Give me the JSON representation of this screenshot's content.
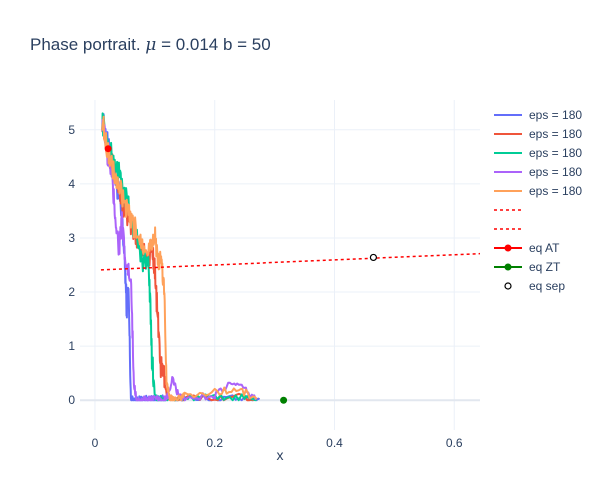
{
  "chart_data": {
    "type": "line",
    "title_prefix": "Phase portrait. ",
    "title_mu": "μ",
    "title_suffix": " = 0.014 b = 50",
    "xlabel": "x",
    "ylabel": "",
    "xlim": [
      -0.025,
      0.643
    ],
    "ylim": [
      -0.55,
      5.55
    ],
    "xticks": [
      0,
      0.2,
      0.4,
      0.6
    ],
    "xtick_labels": [
      "0",
      "0.2",
      "0.4",
      "0.6"
    ],
    "yticks": [
      0,
      1,
      2,
      3,
      4,
      5
    ],
    "ytick_labels": [
      "0",
      "1",
      "2",
      "3",
      "4",
      "5"
    ],
    "grid": true,
    "legend_position": "right",
    "series": [
      {
        "name": "eps = 180",
        "color": "#636efa",
        "mode": "lines",
        "x": [
          0.012,
          0.02,
          0.028,
          0.035,
          0.04,
          0.046,
          0.05,
          0.053,
          0.056,
          0.06,
          0.065,
          0.07,
          0.075,
          0.08,
          0.085,
          0.09,
          0.095,
          0.1,
          0.105,
          0.11,
          0.115,
          0.12,
          0.15,
          0.2,
          0.25,
          0.275
        ],
        "y": [
          5.2,
          4.8,
          4.35,
          4.05,
          3.8,
          3.2,
          2.5,
          1.7,
          2.05,
          0.0,
          0.02,
          0.0,
          0.01,
          0.0,
          0.02,
          0.0,
          0.01,
          0.02,
          0.0,
          0.01,
          0.03,
          0.01,
          0.02,
          0.03,
          0.02,
          0.02
        ]
      },
      {
        "name": "eps = 180",
        "color": "#ef553b",
        "mode": "lines",
        "x": [
          0.012,
          0.02,
          0.03,
          0.04,
          0.05,
          0.06,
          0.07,
          0.08,
          0.09,
          0.095,
          0.1,
          0.105,
          0.11,
          0.115,
          0.12,
          0.125,
          0.13,
          0.15,
          0.2,
          0.25,
          0.27
        ],
        "y": [
          5.2,
          4.7,
          4.3,
          3.9,
          3.5,
          3.2,
          3.0,
          2.8,
          2.6,
          2.9,
          2.4,
          1.5,
          0.6,
          0.5,
          0.1,
          0.05,
          0.0,
          0.03,
          0.05,
          0.06,
          0.02
        ]
      },
      {
        "name": "eps = 180",
        "color": "#00cc96",
        "mode": "lines",
        "x": [
          0.012,
          0.02,
          0.03,
          0.04,
          0.05,
          0.06,
          0.07,
          0.08,
          0.09,
          0.095,
          0.1,
          0.105,
          0.11,
          0.12,
          0.13,
          0.15,
          0.2,
          0.25,
          0.27
        ],
        "y": [
          5.2,
          4.75,
          4.45,
          4.2,
          3.8,
          3.4,
          3.0,
          2.6,
          2.5,
          0.8,
          0.1,
          0.0,
          0.02,
          0.01,
          0.02,
          0.03,
          0.04,
          0.05,
          0.02
        ]
      },
      {
        "name": "eps = 180",
        "color": "#ab63fa",
        "mode": "lines",
        "x": [
          0.012,
          0.02,
          0.03,
          0.035,
          0.04,
          0.045,
          0.05,
          0.06,
          0.065,
          0.07,
          0.08,
          0.09,
          0.1,
          0.11,
          0.12,
          0.13,
          0.14,
          0.15,
          0.2,
          0.225,
          0.25,
          0.27
        ],
        "y": [
          5.2,
          4.6,
          3.9,
          3.3,
          2.8,
          3.3,
          2.6,
          2.2,
          0.3,
          0.0,
          0.0,
          0.01,
          0.02,
          0.0,
          0.01,
          0.4,
          0.05,
          0.03,
          0.1,
          0.3,
          0.2,
          0.02
        ]
      },
      {
        "name": "eps = 180",
        "color": "#ffa15a",
        "mode": "lines",
        "x": [
          0.012,
          0.02,
          0.03,
          0.04,
          0.05,
          0.06,
          0.07,
          0.08,
          0.09,
          0.1,
          0.105,
          0.11,
          0.115,
          0.12,
          0.125,
          0.13,
          0.14,
          0.15,
          0.2,
          0.24,
          0.27
        ],
        "y": [
          5.2,
          4.7,
          4.25,
          3.95,
          3.6,
          3.3,
          3.1,
          2.9,
          2.8,
          3.1,
          2.5,
          2.6,
          2.2,
          0.3,
          0.05,
          0.0,
          0.02,
          0.1,
          0.15,
          0.2,
          0.02
        ]
      },
      {
        "name": "",
        "color": "#ff0000",
        "mode": "dotted",
        "x": [
          0.01,
          0.643
        ],
        "y": [
          2.41,
          2.71
        ]
      },
      {
        "name": "",
        "color": "#ff0000",
        "mode": "dotted",
        "x": [],
        "y": []
      },
      {
        "name": "eq AT",
        "color": "#ff0000",
        "mode": "lines+markers",
        "x": [
          0.022
        ],
        "y": [
          4.65
        ]
      },
      {
        "name": "eq ZT",
        "color": "#008000",
        "mode": "lines+markers",
        "x": [
          0.315
        ],
        "y": [
          0.0
        ]
      },
      {
        "name": "eq sep",
        "color": "#000000",
        "mode": "open-marker",
        "x": [
          0.465
        ],
        "y": [
          2.64
        ]
      }
    ]
  }
}
